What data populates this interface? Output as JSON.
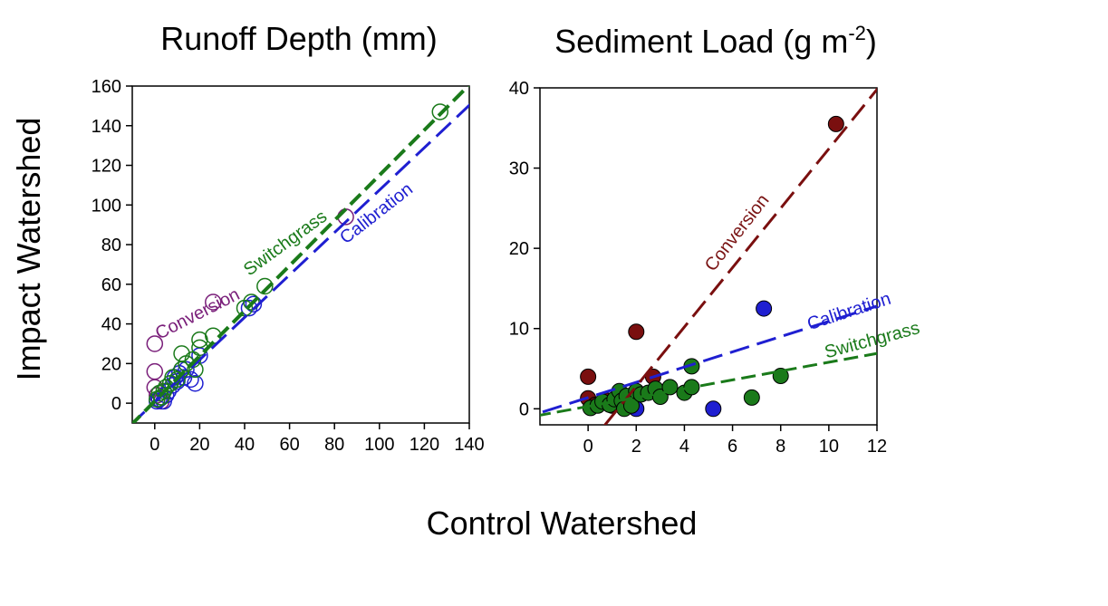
{
  "figure": {
    "ylabel": "Impact Watershed",
    "xlabel": "Control Watershed"
  },
  "colors": {
    "calibration": "#1f1fd1",
    "conversion_open": "#7a1f7a",
    "conversion_fill": "#7a0f0f",
    "conversion_line": "#7a1414",
    "switchgrass": "#1a7a1a",
    "marker_edge": "#000000"
  },
  "chart_data": [
    {
      "type": "scatter",
      "title": "Runoff Depth (mm)",
      "marker_style": "open",
      "xlim": [
        -10,
        140
      ],
      "ylim": [
        -10,
        160
      ],
      "xticks": [
        0,
        20,
        40,
        60,
        80,
        100,
        120,
        140
      ],
      "yticks": [
        0,
        20,
        40,
        60,
        80,
        100,
        120,
        140,
        160
      ],
      "grid": false,
      "series": [
        {
          "name": "Calibration",
          "color_key": "calibration",
          "points": [
            [
              1,
              1
            ],
            [
              2,
              2
            ],
            [
              3,
              3
            ],
            [
              4,
              1
            ],
            [
              5,
              4
            ],
            [
              6,
              6
            ],
            [
              8,
              9
            ],
            [
              9,
              13
            ],
            [
              10,
              11
            ],
            [
              11,
              15
            ],
            [
              13,
              13
            ],
            [
              14,
              17
            ],
            [
              16,
              12
            ],
            [
              18,
              10
            ],
            [
              20,
              24
            ],
            [
              42,
              48
            ],
            [
              44,
              50
            ]
          ],
          "fit": {
            "slope": 1.07,
            "intercept": 0.5
          }
        },
        {
          "name": "Conversion",
          "color_key": "conversion_open",
          "points": [
            [
              0,
              30
            ],
            [
              0,
              16
            ],
            [
              0,
              8
            ],
            [
              1,
              4
            ],
            [
              2,
              2
            ],
            [
              3,
              1
            ],
            [
              26,
              51
            ],
            [
              85,
              94
            ]
          ],
          "fit": null
        },
        {
          "name": "Switchgrass",
          "color_key": "switchgrass",
          "points": [
            [
              1,
              2
            ],
            [
              2,
              5
            ],
            [
              3,
              3
            ],
            [
              4,
              6
            ],
            [
              5,
              8
            ],
            [
              7,
              10
            ],
            [
              8,
              13
            ],
            [
              10,
              12
            ],
            [
              12,
              17
            ],
            [
              12,
              25
            ],
            [
              14,
              20
            ],
            [
              17,
              22
            ],
            [
              18,
              17
            ],
            [
              20,
              28
            ],
            [
              20,
              32
            ],
            [
              26,
              34
            ],
            [
              40,
              48
            ],
            [
              43,
              51
            ],
            [
              49,
              59
            ],
            [
              127,
              147
            ]
          ],
          "fit": {
            "slope": 1.14,
            "intercept": 1.0
          }
        }
      ],
      "annotations": [
        {
          "text": "Conversion",
          "x": 2,
          "y": 32,
          "angle": -27,
          "color_key": "conversion_open"
        },
        {
          "text": "Switchgrass",
          "x": 42,
          "y": 64,
          "angle": -36,
          "color_key": "switchgrass"
        },
        {
          "text": "Calibration",
          "x": 85,
          "y": 80,
          "angle": -38,
          "color_key": "calibration"
        }
      ]
    },
    {
      "type": "scatter",
      "title_main": "Sediment Load (g m",
      "title_sup": "-2",
      "title_end": ")",
      "marker_style": "filled",
      "xlim": [
        -2,
        12
      ],
      "ylim": [
        -2,
        40
      ],
      "xticks": [
        0,
        2,
        4,
        6,
        8,
        10,
        12
      ],
      "yticks": [
        0,
        10,
        20,
        30,
        40
      ],
      "grid": false,
      "series": [
        {
          "name": "Calibration",
          "color_key": "calibration",
          "points": [
            [
              2.0,
              0.0
            ],
            [
              5.2,
              0.0
            ],
            [
              7.3,
              12.5
            ]
          ],
          "fit": {
            "slope": 0.95,
            "intercept": 1.4
          }
        },
        {
          "name": "Conversion",
          "color_key": "conversion_fill",
          "points": [
            [
              0.0,
              4.0
            ],
            [
              0.0,
              1.3
            ],
            [
              0.3,
              0.5
            ],
            [
              0.8,
              1.0
            ],
            [
              1.0,
              0.4
            ],
            [
              1.5,
              0.6
            ],
            [
              2.0,
              9.6
            ],
            [
              2.7,
              4.0
            ],
            [
              10.3,
              35.5
            ]
          ],
          "fit": {
            "slope": 3.7,
            "intercept": -4.6
          }
        },
        {
          "name": "Switchgrass",
          "color_key": "switchgrass",
          "points": [
            [
              0.1,
              0.1
            ],
            [
              0.4,
              0.4
            ],
            [
              0.6,
              0.9
            ],
            [
              0.9,
              0.5
            ],
            [
              1.1,
              1.2
            ],
            [
              1.3,
              2.2
            ],
            [
              1.4,
              1.0
            ],
            [
              1.5,
              0.0
            ],
            [
              1.6,
              1.6
            ],
            [
              1.8,
              0.4
            ],
            [
              2.0,
              2.2
            ],
            [
              2.2,
              1.8
            ],
            [
              2.5,
              2.0
            ],
            [
              2.8,
              2.5
            ],
            [
              3.0,
              1.5
            ],
            [
              3.4,
              2.7
            ],
            [
              4.0,
              2.0
            ],
            [
              4.3,
              2.7
            ],
            [
              4.3,
              5.3
            ],
            [
              6.8,
              1.4
            ],
            [
              8.0,
              4.1
            ]
          ],
          "fit": {
            "slope": 0.55,
            "intercept": 0.3
          }
        }
      ],
      "annotations": [
        {
          "text": "Conversion",
          "x": 5.2,
          "y": 17,
          "angle": -52,
          "color_key": "conversion_line"
        },
        {
          "text": "Calibration",
          "x": 9.2,
          "y": 9.8,
          "angle": -18,
          "color_key": "calibration"
        },
        {
          "text": "Switchgrass",
          "x": 9.9,
          "y": 6.3,
          "angle": -15,
          "color_key": "switchgrass"
        }
      ]
    }
  ]
}
